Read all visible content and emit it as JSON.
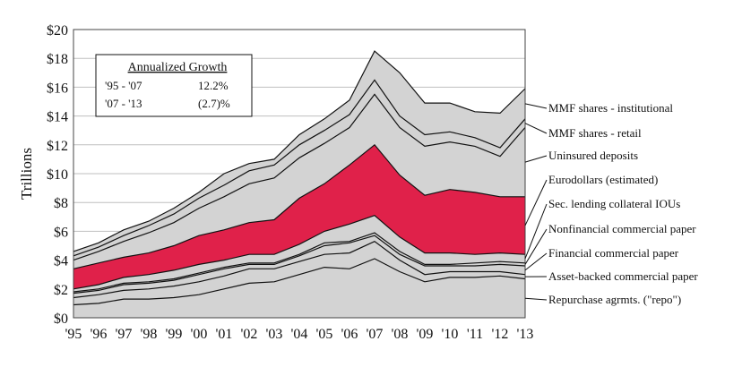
{
  "chart_data": {
    "type": "area",
    "stacked": true,
    "ylabel": "Trillions",
    "xlabel": "",
    "ylim": [
      0,
      20
    ],
    "yticks": [
      0,
      2,
      4,
      6,
      8,
      10,
      12,
      14,
      16,
      18,
      20
    ],
    "ytick_labels": [
      "$0",
      "$2",
      "$4",
      "$6",
      "$8",
      "$10",
      "$12",
      "$14",
      "$16",
      "$18",
      "$20"
    ],
    "categories": [
      "'95",
      "'96",
      "'97",
      "'98",
      "'99",
      "'00",
      "'01",
      "'02",
      "'03",
      "'04",
      "'05",
      "'06",
      "'07",
      "'08",
      "'09",
      "'10",
      "'11",
      "'12",
      "'13"
    ],
    "series": [
      {
        "name": "Repurchase agrmts. (\"repo\")",
        "color": "#d3d3d3",
        "values": [
          0.9,
          1.0,
          1.3,
          1.3,
          1.4,
          1.6,
          2.0,
          2.4,
          2.5,
          3.0,
          3.5,
          3.4,
          4.1,
          3.2,
          2.5,
          2.8,
          2.8,
          2.9,
          2.7
        ]
      },
      {
        "name": "Asset-backed commercial paper",
        "color": "#d3d3d3",
        "values": [
          0.5,
          0.6,
          0.6,
          0.7,
          0.8,
          0.9,
          0.9,
          1.0,
          0.9,
          0.9,
          0.9,
          1.1,
          1.2,
          0.8,
          0.5,
          0.4,
          0.4,
          0.3,
          0.3
        ]
      },
      {
        "name": "Financial commercial paper",
        "color": "#d3d3d3",
        "values": [
          0.3,
          0.3,
          0.4,
          0.4,
          0.4,
          0.5,
          0.5,
          0.3,
          0.3,
          0.4,
          0.6,
          0.7,
          0.4,
          0.4,
          0.6,
          0.4,
          0.4,
          0.5,
          0.6
        ]
      },
      {
        "name": "Nonfinancial commercial paper",
        "color": "#d3d3d3",
        "values": [
          0.1,
          0.1,
          0.1,
          0.1,
          0.1,
          0.1,
          0.1,
          0.1,
          0.1,
          0.1,
          0.2,
          0.1,
          0.2,
          0.2,
          0.1,
          0.1,
          0.2,
          0.2,
          0.2
        ]
      },
      {
        "name": "Sec. lending collateral IOUs",
        "color": "#d3d3d3",
        "values": [
          0.2,
          0.3,
          0.4,
          0.5,
          0.6,
          0.6,
          0.5,
          0.6,
          0.6,
          0.7,
          0.8,
          1.2,
          1.2,
          1.0,
          0.8,
          0.8,
          0.6,
          0.6,
          0.6
        ]
      },
      {
        "name": "Eurodollars (estimated)",
        "color": "#e0214a",
        "values": [
          1.4,
          1.5,
          1.4,
          1.5,
          1.7,
          2.0,
          2.1,
          2.2,
          2.4,
          3.2,
          3.3,
          4.1,
          4.9,
          4.3,
          4.0,
          4.4,
          4.3,
          3.9,
          4.0
        ]
      },
      {
        "name": "Uninsured deposits",
        "color": "#d3d3d3",
        "values": [
          0.6,
          0.8,
          1.1,
          1.4,
          1.6,
          1.9,
          2.3,
          2.7,
          2.9,
          2.8,
          2.8,
          2.6,
          3.5,
          3.3,
          3.4,
          3.3,
          3.2,
          2.8,
          4.8
        ]
      },
      {
        "name": "MMF shares - retail",
        "color": "#d3d3d3",
        "values": [
          0.3,
          0.3,
          0.4,
          0.5,
          0.6,
          0.7,
          0.8,
          0.9,
          0.9,
          0.9,
          0.9,
          0.9,
          1.0,
          0.8,
          0.8,
          0.7,
          0.6,
          0.6,
          0.6
        ]
      },
      {
        "name": "MMF shares - institutional",
        "color": "#d3d3d3",
        "values": [
          0.3,
          0.3,
          0.4,
          0.3,
          0.4,
          0.4,
          0.8,
          0.5,
          0.4,
          0.7,
          0.8,
          1.0,
          2.0,
          3.0,
          2.2,
          2.0,
          1.8,
          2.4,
          2.1
        ]
      }
    ],
    "annotation": {
      "title": "Annualized Growth",
      "rows": [
        {
          "period": "'95 - '07",
          "rate": "12.2%"
        },
        {
          "period": "'07 - '13",
          "rate": "(2.7)%"
        }
      ]
    },
    "legend_placement": "right"
  }
}
